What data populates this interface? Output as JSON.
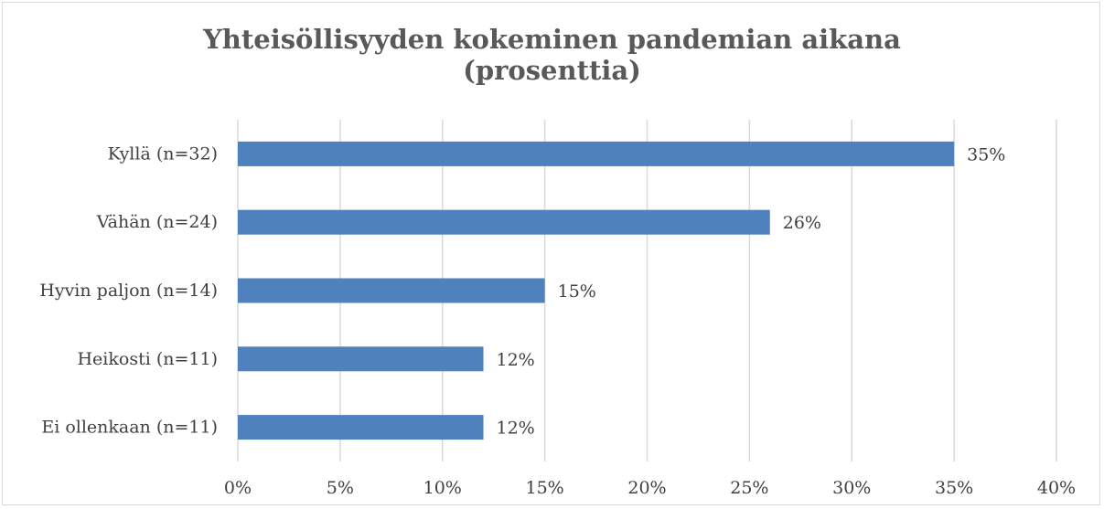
{
  "chart_data": {
    "type": "bar",
    "orientation": "horizontal",
    "title": "Yhteisöllisyyden kokeminen pandemian aikana (prosenttia)",
    "categories": [
      "Kyllä (n=32)",
      "Vähän (n=24)",
      "Hyvin paljon (n=14)",
      "Heikosti (n=11)",
      "Ei ollenkaan (n=11)"
    ],
    "values": [
      35,
      26,
      15,
      12,
      12
    ],
    "value_labels": [
      "35%",
      "26%",
      "15%",
      "12%",
      "12%"
    ],
    "color": "#4f81bd",
    "xlim": [
      0,
      40
    ],
    "xticks": [
      {
        "value": 0,
        "label": "0%"
      },
      {
        "value": 5,
        "label": "5%"
      },
      {
        "value": 10,
        "label": "10%"
      },
      {
        "value": 15,
        "label": "15%"
      },
      {
        "value": 20,
        "label": "20%"
      },
      {
        "value": 25,
        "label": "25%"
      },
      {
        "value": 30,
        "label": "30%"
      },
      {
        "value": 35,
        "label": "35%"
      },
      {
        "value": 40,
        "label": "40%"
      }
    ],
    "grid": true
  }
}
